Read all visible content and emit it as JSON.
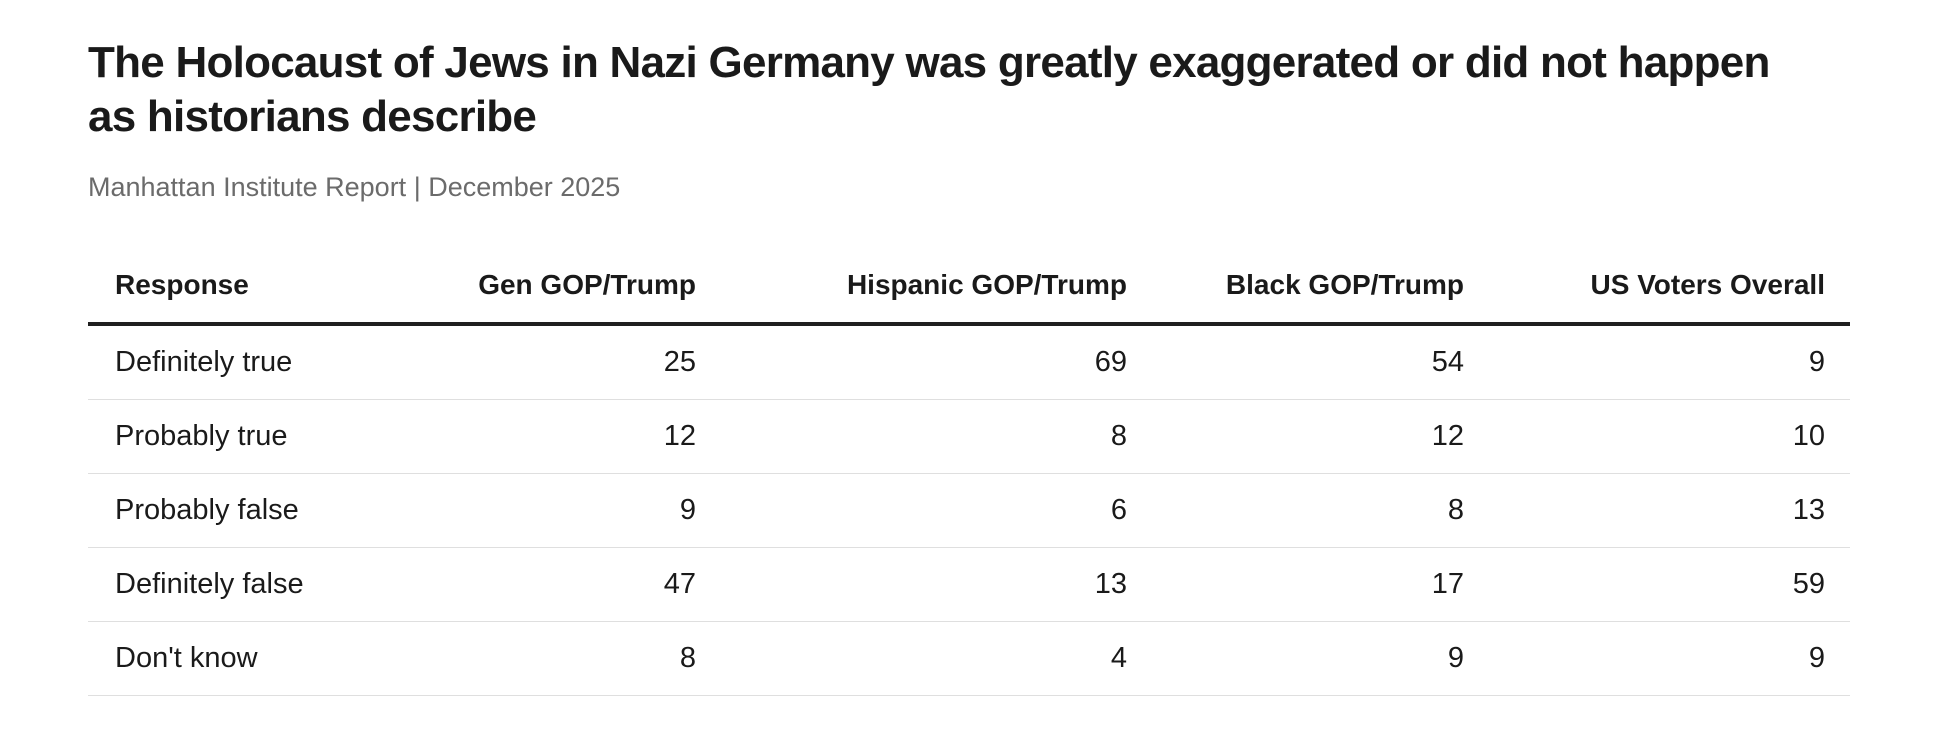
{
  "header": {
    "title_line1": "The Holocaust of Jews in Nazi Germany was greatly exaggerated or did not happen",
    "title_line2": "as historians describe",
    "subtitle": "Manhattan Institute Report | December 2025"
  },
  "chart_data": {
    "type": "table",
    "title": "The Holocaust of Jews in Nazi Germany was greatly exaggerated or did not happen as historians describe",
    "subtitle": "Manhattan Institute Report | December 2025",
    "columns": [
      "Response",
      "Gen GOP/Trump",
      "Hispanic GOP/Trump",
      "Black GOP/Trump",
      "US Voters Overall"
    ],
    "categories": [
      "Definitely true",
      "Probably true",
      "Probably false",
      "Definitely false",
      "Don't know"
    ],
    "rows": [
      {
        "label": "Definitely true",
        "values": [
          25,
          69,
          54,
          9
        ]
      },
      {
        "label": "Probably true",
        "values": [
          12,
          8,
          12,
          10
        ]
      },
      {
        "label": "Probably false",
        "values": [
          9,
          6,
          8,
          13
        ]
      },
      {
        "label": "Definitely false",
        "values": [
          47,
          13,
          17,
          59
        ]
      },
      {
        "label": "Don't know",
        "values": [
          8,
          4,
          9,
          9
        ]
      }
    ],
    "series": [
      {
        "name": "Gen GOP/Trump",
        "values": [
          25,
          12,
          9,
          47,
          8
        ]
      },
      {
        "name": "Hispanic GOP/Trump",
        "values": [
          69,
          8,
          6,
          13,
          4
        ]
      },
      {
        "name": "Black GOP/Trump",
        "values": [
          54,
          12,
          8,
          17,
          9
        ]
      },
      {
        "name": "US Voters Overall",
        "values": [
          9,
          10,
          13,
          59,
          9
        ]
      }
    ],
    "layout": {
      "value_alignment": "right",
      "header_rule": "thick",
      "grid": "horizontal-only"
    }
  },
  "colors": {
    "text": "#1a1a1a",
    "subtitle": "#6b6b6b",
    "header_rule": "#1f1f1f",
    "row_divider": "#dfdfdf",
    "background": "#ffffff"
  }
}
